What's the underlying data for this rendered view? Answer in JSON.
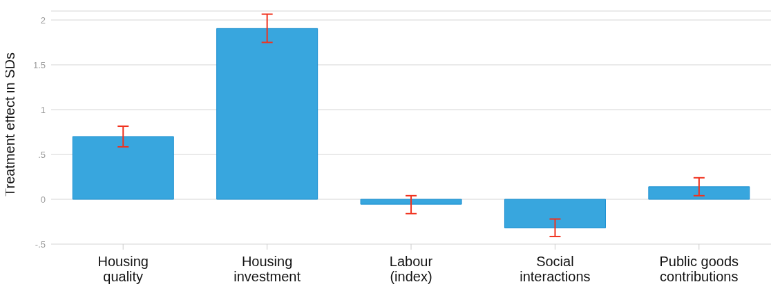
{
  "chart_data": {
    "type": "bar",
    "ylabel": "Treatment effect in SDs",
    "categories": [
      "Housing\nquality",
      "Housing\ninvestment",
      "Labour\n(index)",
      "Social\ninteractions",
      "Public goods\ncontributions"
    ],
    "values": [
      0.7,
      1.905,
      -0.055,
      -0.32,
      0.14
    ],
    "errors": [
      [
        0.585,
        0.815
      ],
      [
        1.75,
        2.065
      ],
      [
        -0.16,
        0.04
      ],
      [
        -0.415,
        -0.22
      ],
      [
        0.04,
        0.24
      ]
    ],
    "color": "#38a6de",
    "ylim": [
      -0.5,
      2.1
    ],
    "yticks": [
      {
        "value": -0.5,
        "label": "-.5"
      },
      0,
      {
        "value": 0.5,
        "label": ".5"
      },
      1,
      1.5,
      2
    ],
    "grid": "y"
  }
}
